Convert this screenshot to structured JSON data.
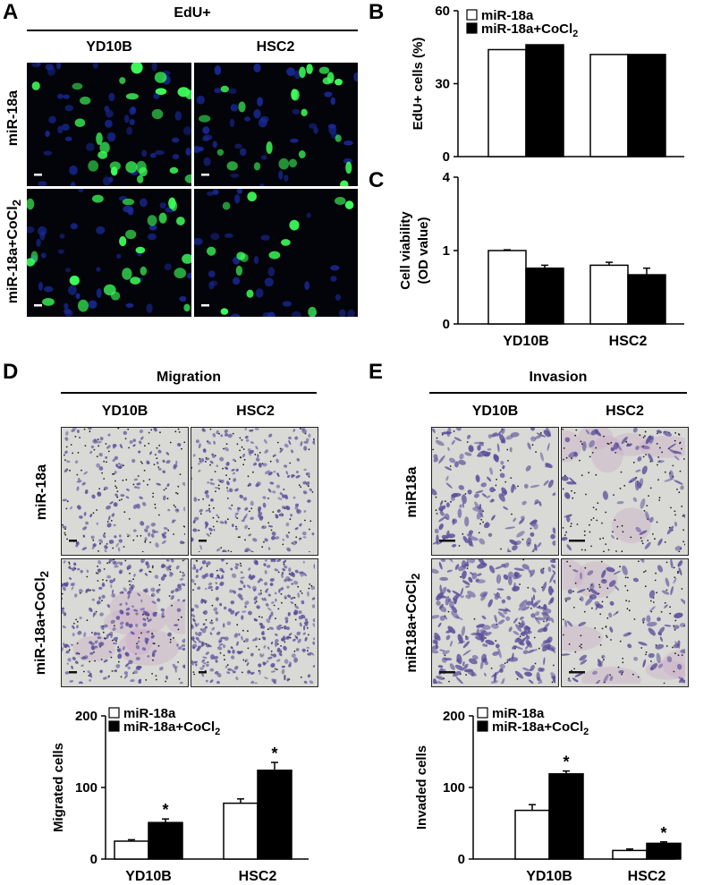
{
  "figure": {
    "panels": {
      "A": {
        "label": "A",
        "header": "EdU+",
        "columns": [
          "YD10B",
          "HSC2"
        ],
        "rows": [
          {
            "text": "miR-18a",
            "sub": ""
          },
          {
            "text": "miR-18a+CoCl",
            "sub": "2"
          }
        ]
      },
      "B": {
        "label": "B"
      },
      "C": {
        "label": "C"
      },
      "D": {
        "label": "D",
        "header": "Migration",
        "columns": [
          "YD10B",
          "HSC2"
        ],
        "rows": [
          {
            "text": "miR-18a",
            "sub": ""
          },
          {
            "text": "miR-18a+CoCl",
            "sub": "2"
          }
        ]
      },
      "E": {
        "label": "E",
        "header": "Invasion",
        "columns": [
          "YD10B",
          "HSC2"
        ],
        "rows": [
          {
            "text": "miR18a",
            "sub": ""
          },
          {
            "text": "miR18a+CoCl",
            "sub": "2"
          }
        ]
      }
    }
  },
  "chart_data": [
    {
      "id": "B",
      "type": "bar",
      "categories": [
        "YD10B",
        "HSC2"
      ],
      "show_categories": false,
      "series": [
        {
          "name": "miR-18a",
          "name_sub": "",
          "values": [
            44,
            42
          ],
          "errors": [
            0,
            0
          ],
          "fill": "#ffffff"
        },
        {
          "name": "miR-18a+CoCl",
          "name_sub": "2",
          "values": [
            46,
            42
          ],
          "errors": [
            0,
            0
          ],
          "fill": "#000000"
        }
      ],
      "ylabel": "EdU+ cells (%)",
      "ylim": [
        0,
        60
      ],
      "yticks": [
        0,
        30,
        60
      ],
      "significance": [
        "",
        ""
      ],
      "legend": "top-left"
    },
    {
      "id": "C",
      "type": "bar",
      "categories": [
        "YD10B",
        "HSC2"
      ],
      "show_categories": true,
      "series": [
        {
          "name": "",
          "values": [
            1.0,
            0.76
          ],
          "errors": [
            0.03,
            0.04
          ],
          "fill": "#ffffff"
        },
        {
          "name": "",
          "values": [
            0.8,
            0.67
          ],
          "errors": [
            0.04,
            0.09
          ],
          "fill": "#000000"
        }
      ],
      "series_by_category": true,
      "ylabel": [
        "Cell viability",
        "(OD value)"
      ],
      "ylim": [
        0,
        4
      ],
      "yticks_labels": [
        "0",
        "1",
        "4"
      ],
      "axis_scale": "broken: 0-1 linear, 1-4 compressed",
      "significance": [
        "",
        ""
      ]
    },
    {
      "id": "D",
      "type": "bar",
      "categories": [
        "YD10B",
        "HSC2"
      ],
      "show_categories": true,
      "series": [
        {
          "name": "miR-18a",
          "name_sub": "",
          "values": [
            25,
            78
          ],
          "errors": [
            2,
            6
          ],
          "fill": "#ffffff"
        },
        {
          "name": "miR-18a+CoCl",
          "name_sub": "2",
          "values": [
            51,
            124
          ],
          "errors": [
            5,
            11
          ],
          "fill": "#000000"
        }
      ],
      "ylabel": "Migrated cells",
      "ylim": [
        0,
        200
      ],
      "yticks": [
        0,
        100,
        200
      ],
      "significance": [
        "*",
        "*"
      ],
      "legend": "top-left"
    },
    {
      "id": "E",
      "type": "bar",
      "categories": [
        "YD10B",
        "HSC2"
      ],
      "show_categories": true,
      "series": [
        {
          "name": "miR-18a",
          "name_sub": "",
          "values": [
            68,
            12
          ],
          "errors": [
            8,
            2
          ],
          "fill": "#ffffff"
        },
        {
          "name": "miR-18a+CoCl",
          "name_sub": "2",
          "values": [
            119,
            22
          ],
          "errors": [
            4,
            2
          ],
          "fill": "#000000"
        }
      ],
      "ylabel": "Invaded cells",
      "ylim": [
        0,
        200
      ],
      "yticks": [
        0,
        100,
        200
      ],
      "significance": [
        "*",
        "*"
      ],
      "legend": "top-left"
    }
  ],
  "colors": {
    "fluor_bg": "#03040a",
    "nucleus_blue": "#1a2a9a",
    "edu_green": "#3dff5a",
    "bright_bg": "#d9d9d5",
    "cell_purple": "#5a4d9a",
    "matrigel_pink": "#c9a6c6"
  }
}
